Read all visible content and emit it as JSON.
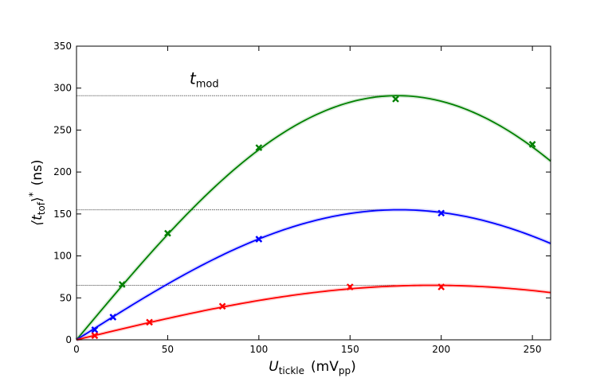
{
  "chart_data": {
    "type": "line",
    "title": "",
    "xlabel": {
      "main": "U",
      "sub": "tickle",
      "unit_pre": "(mV",
      "unit_sub": "pp",
      "unit_post": ")"
    },
    "ylabel": {
      "pre": "⟨t",
      "sub": "tof",
      "post": "⟩",
      "sup": "*",
      "unit": "(ns)"
    },
    "xlim": [
      0,
      260
    ],
    "ylim": [
      0,
      350
    ],
    "xticks": [
      0,
      50,
      100,
      150,
      200,
      250
    ],
    "yticks": [
      0,
      50,
      100,
      150,
      200,
      250,
      300,
      350
    ],
    "grid": false,
    "legend": "none",
    "annotation": {
      "main": "t",
      "sub": "mod",
      "x": 62,
      "y": 305
    },
    "reference_lines": [
      {
        "y": 291,
        "x_start": 0,
        "x_end": 175
      },
      {
        "y": 155,
        "x_start": 0,
        "x_end": 175
      },
      {
        "y": 65,
        "x_start": 0,
        "x_end": 175
      }
    ],
    "series": [
      {
        "color": "#008000",
        "fit_peak": {
          "x": 176,
          "y": 291
        },
        "fit_x_end": 260,
        "points": [
          {
            "x": 25,
            "y": 66
          },
          {
            "x": 50,
            "y": 127
          },
          {
            "x": 100,
            "y": 229
          },
          {
            "x": 175,
            "y": 287
          },
          {
            "x": 250,
            "y": 233
          }
        ]
      },
      {
        "color": "#0000ff",
        "fit_peak": {
          "x": 177,
          "y": 155
        },
        "fit_x_end": 260,
        "points": [
          {
            "x": 10,
            "y": 12
          },
          {
            "x": 20,
            "y": 27
          },
          {
            "x": 100,
            "y": 120
          },
          {
            "x": 200,
            "y": 151
          }
        ]
      },
      {
        "color": "#ff0000",
        "fit_peak": {
          "x": 195,
          "y": 65
        },
        "fit_x_end": 260,
        "points": [
          {
            "x": 10,
            "y": 5
          },
          {
            "x": 40,
            "y": 21
          },
          {
            "x": 80,
            "y": 40
          },
          {
            "x": 150,
            "y": 63
          },
          {
            "x": 200,
            "y": 63
          }
        ]
      }
    ]
  }
}
